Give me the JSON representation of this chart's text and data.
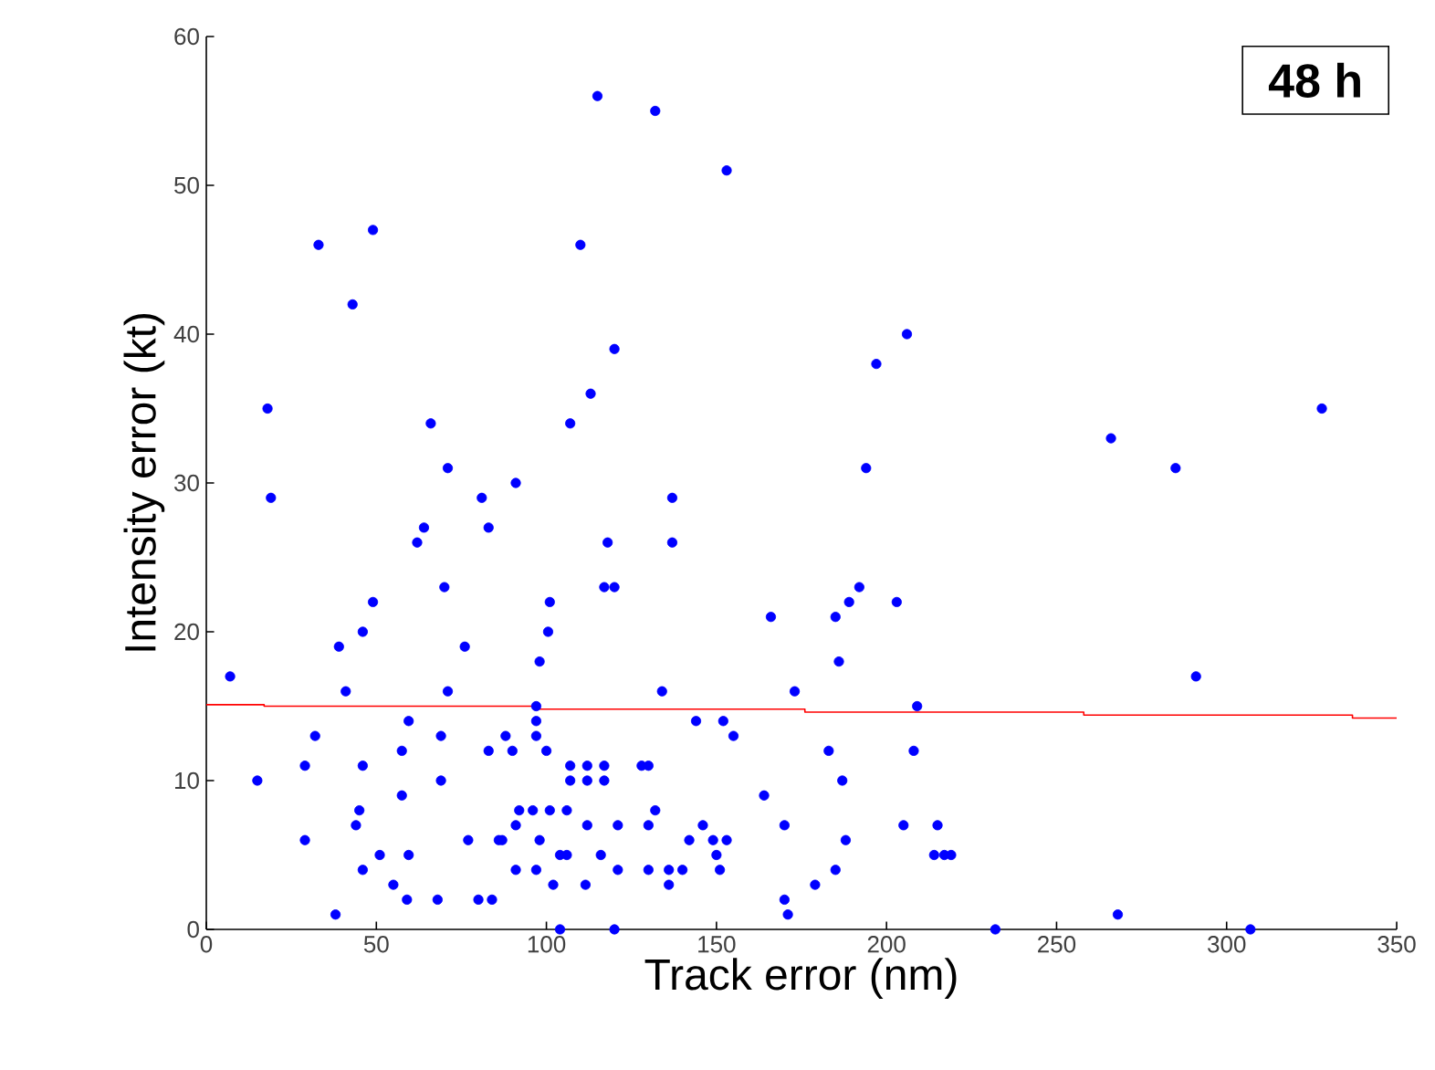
{
  "chart_data": {
    "type": "scatter",
    "xlabel": "Track error (nm)",
    "ylabel": "Intensity error (kt)",
    "annotations": [
      "48 h"
    ],
    "xlim": [
      0,
      350
    ],
    "ylim": [
      0,
      60
    ],
    "xticks": [
      0,
      50,
      100,
      150,
      200,
      250,
      300,
      350
    ],
    "yticks": [
      0,
      10,
      20,
      30,
      40,
      50,
      60
    ],
    "grid": false,
    "series": [
      {
        "color": "#0000ff",
        "marker": "circle",
        "x": [
          19,
          7,
          15,
          29,
          32,
          29,
          38,
          39,
          41,
          46,
          49,
          46,
          45,
          44,
          46,
          51,
          55,
          59,
          57.5,
          57.5,
          59.5,
          62,
          64,
          70,
          71,
          69,
          69,
          68,
          59.5,
          76,
          81,
          83,
          91,
          77,
          86,
          87,
          80,
          84,
          83,
          88,
          90,
          91,
          92,
          96,
          101,
          91,
          97,
          98,
          97,
          97,
          97,
          100,
          98,
          100.5,
          101,
          104,
          102,
          104,
          106,
          106,
          107,
          107,
          112,
          112,
          112,
          111.5,
          116,
          117,
          117,
          118,
          117,
          120,
          121,
          121,
          120,
          115,
          33,
          49,
          43,
          110,
          120,
          113,
          18,
          66,
          71,
          107,
          132,
          153,
          206,
          197,
          194,
          137,
          137,
          192,
          189,
          185,
          203,
          166,
          186,
          134,
          173,
          209,
          144,
          152,
          155,
          128,
          130,
          183,
          187,
          208,
          164,
          132,
          130,
          146,
          170,
          205,
          215,
          142,
          149,
          153,
          188,
          150,
          151,
          130,
          136,
          140,
          136,
          179,
          185,
          214,
          217,
          219,
          170,
          171,
          232,
          266,
          285,
          328,
          291,
          268,
          307
        ],
        "values": [
          29,
          17,
          10,
          11,
          13,
          6,
          1,
          19,
          16,
          20,
          22,
          11,
          8,
          7,
          4,
          5,
          3,
          2,
          9,
          12,
          14,
          26,
          27,
          23,
          16,
          13,
          10,
          2,
          5,
          19,
          29,
          27,
          30,
          6,
          6,
          6,
          2,
          2,
          12,
          13,
          12,
          7,
          8,
          8,
          8,
          4,
          4,
          6,
          15,
          14,
          13,
          12,
          18,
          20,
          22,
          0,
          3,
          5,
          5,
          8,
          11,
          10,
          11,
          10,
          7,
          3,
          5,
          11,
          10,
          26,
          23,
          23,
          7,
          4,
          0,
          56,
          46,
          47,
          42,
          46,
          39,
          36,
          35,
          34,
          31,
          34,
          55,
          51,
          40,
          38,
          31,
          29,
          26,
          23,
          22,
          21,
          22,
          21,
          18,
          16,
          16,
          15,
          14,
          14,
          13,
          11,
          11,
          12,
          10,
          12,
          9,
          8,
          7,
          7,
          7,
          7,
          7,
          6,
          6,
          6,
          6,
          5,
          4,
          4,
          4,
          4,
          3,
          3,
          4,
          5,
          5,
          5,
          2,
          1,
          0,
          33,
          31,
          35,
          17,
          1,
          0
        ]
      },
      {
        "type": "line",
        "color": "#ff0000",
        "marker": "none",
        "x": [
          0,
          17,
          17,
          97,
          97,
          176,
          176,
          258,
          258,
          337,
          337,
          350
        ],
        "values": [
          15.1,
          15.1,
          15.0,
          15.0,
          14.8,
          14.8,
          14.6,
          14.6,
          14.4,
          14.4,
          14.2,
          14.2
        ]
      }
    ]
  }
}
